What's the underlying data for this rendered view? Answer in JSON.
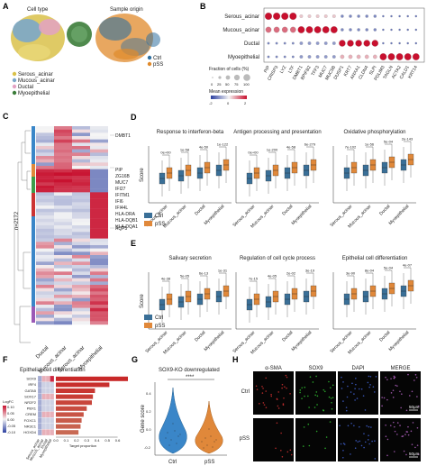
{
  "panel_labels": {
    "A": "A",
    "B": "B",
    "C": "C",
    "D": "D",
    "E": "E",
    "F": "F",
    "G": "G",
    "H": "H"
  },
  "panelA": {
    "left_title": "Cell type",
    "right_title": "Sample origin",
    "legend_celltype": [
      {
        "label": "Serous_acinar",
        "color": "#d9c14a"
      },
      {
        "label": "Mucous_acinar",
        "color": "#7ba7c9"
      },
      {
        "label": "Ductal",
        "color": "#e3a2c3"
      },
      {
        "label": "Myoepithelial",
        "color": "#3c7d3a"
      }
    ],
    "legend_origin": [
      {
        "label": "Ctrl",
        "color": "#2f6f9f"
      },
      {
        "label": "pSS",
        "color": "#e08a2b"
      }
    ]
  },
  "panelB": {
    "rows": [
      "Serous_acinar",
      "Mucous_acinar",
      "Ductal",
      "Myoepithelial"
    ],
    "genes": [
      "PIP",
      "CRISP3",
      "LYZ",
      "LTF",
      "DMBT1",
      "BPIFB2",
      "TFF3",
      "MUC7",
      "MUC5B",
      "DUSP1",
      "KRT7",
      "ANXA1",
      "CLDN4",
      "SLPI",
      "PDLIM3",
      "TAGLN",
      "ACTA2",
      "CALD1",
      "KRT14"
    ],
    "legend_fraction_title": "Fraction of cells (%)",
    "legend_fraction_ticks": [
      "0",
      "25",
      "50",
      "75",
      "100"
    ],
    "legend_expr_title": "Mean expression",
    "legend_expr_ticks": [
      "-2",
      "0",
      "2"
    ]
  },
  "panelC": {
    "yaxis_label": "n=2172",
    "columns": [
      "Ductal",
      "Mucous_acinar",
      "Serous_acinar",
      "Myoepithelial"
    ],
    "genes_top": [
      "DMBT1"
    ],
    "genes_mid": [
      "PIP",
      "ZG16B",
      "MUC7",
      "IFI27",
      "IFITM1",
      "IFI6",
      "IFI44L",
      "HLA-DRA",
      "HLA-DQB1",
      "HLA-DQA1"
    ],
    "genes_low": [
      "AQP5"
    ]
  },
  "panelD": {
    "titles": [
      "Response to interferon-beta",
      "Antigen processing and presentation",
      "Oxidative phosphorylation"
    ],
    "ylabel": "Score",
    "pvalues": [
      [
        "0e+00",
        "1e-58",
        "4e-50",
        "1e-122"
      ],
      [
        "0e+00",
        "1e-200",
        "4e-58",
        "6e-279"
      ],
      [
        "7e-102",
        "1e-56",
        "5e-04",
        "2e-143"
      ]
    ],
    "categories": [
      "Serous_acinar",
      "Mucous_acinar",
      "Ductal",
      "Myoepithelial"
    ],
    "legend": [
      {
        "label": "Ctrl",
        "color": "#3a6f97"
      },
      {
        "label": "pSS",
        "color": "#e0883a"
      }
    ]
  },
  "panelE": {
    "titles": [
      "Salivary secretion",
      "Regulation of cell cycle process",
      "Epithelial cell differentiation"
    ],
    "ylabel": "Score",
    "pvalues": [
      [
        "4e-38",
        "5e-05",
        "6e-13",
        "1e-31"
      ],
      [
        "7e-15",
        "4e-05",
        "2e-02",
        "3e-19"
      ],
      [
        "3e-90",
        "8e-04",
        "5e-04",
        "4e-07"
      ]
    ],
    "categories": [
      "Serous_acinar",
      "Mucous_acinar",
      "Ductal",
      "Myoepithelial"
    ]
  },
  "panelF": {
    "title": "Epithelial cell differentiation",
    "genes": [
      "SOX9",
      "IRF4",
      "GATA5",
      "SOX17",
      "NR2F2",
      "PBX1",
      "CREM",
      "FOXC1",
      "NR3C1",
      "HOXD4"
    ],
    "target_proportion": [
      0.7,
      0.52,
      0.38,
      0.36,
      0.35,
      0.3,
      0.27,
      0.25,
      0.24,
      0.22
    ],
    "xlabel": "Target proportion",
    "xticks": [
      "0.0",
      "0.1",
      "0.2",
      "0.3",
      "0.4",
      "0.5",
      "0.6"
    ],
    "columns": [
      "Serous_acinar",
      "Mucous_acinar",
      "Ductal",
      "Myoepithelial"
    ],
    "legend_title": "LogFC",
    "legend_ticks": [
      "0.10",
      "0.05",
      "0.00",
      "-0.05",
      "-0.10"
    ]
  },
  "panelG": {
    "title": "SOX9-KO downregulated",
    "significance": "****",
    "ylabel": "Gene score",
    "categories": [
      "Ctrl",
      "pSS"
    ],
    "yticks": [
      "0.4",
      "0.2",
      "0.0",
      "-0.2"
    ]
  },
  "panelH": {
    "columns": [
      "α-SMA",
      "SOX9",
      "DAPI",
      "MERGE"
    ],
    "column_colors": [
      "#e8333a",
      "#3fb54a",
      "#4b62d6",
      "#222222"
    ],
    "rows": [
      "Ctrl",
      "pSS"
    ],
    "scale_label": "50μm"
  }
}
